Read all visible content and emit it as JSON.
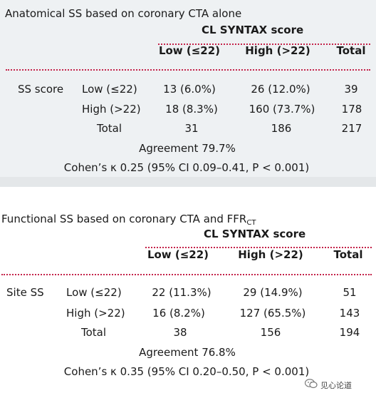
{
  "table1": {
    "title": "Anatomical SS based on coronary CTA alone",
    "group_header": "CL SYNTAX score",
    "col_headers": [
      "Low (≤22)",
      "High (>22)",
      "Total"
    ],
    "row_group_label": "SS score",
    "rows": [
      {
        "label": "Low (≤22)",
        "cells": [
          "13 (6.0%)",
          "26 (12.0%)",
          "39"
        ]
      },
      {
        "label": "High (>22)",
        "cells": [
          "18 (8.3%)",
          "160 (73.7%)",
          "178"
        ]
      },
      {
        "label": "Total",
        "cells": [
          "31",
          "186",
          "217"
        ]
      }
    ],
    "agreement": "Agreement 79.7%",
    "kappa": "Cohen’s κ 0.25 (95% CI 0.09–0.41, P < 0.001)"
  },
  "table2": {
    "title_main": "Functional SS based on coronary CTA and FFR",
    "title_sub": "CT",
    "group_header": "CL SYNTAX score",
    "col_headers": [
      "Low (≤22)",
      "High (>22)",
      "Total"
    ],
    "row_group_label": "Site SS",
    "rows": [
      {
        "label": "Low (≤22)",
        "cells": [
          "22 (11.3%)",
          "29 (14.9%)",
          "51"
        ]
      },
      {
        "label": "High (>22)",
        "cells": [
          "16 (8.2%)",
          "127 (65.5%)",
          "143"
        ]
      },
      {
        "label": "Total",
        "cells": [
          "38",
          "156",
          "194"
        ]
      }
    ],
    "agreement": "Agreement 76.8%",
    "kappa": "Cohen’s κ 0.35 (95% CI 0.20–0.50, P < 0.001)"
  },
  "watermark": "见心论道",
  "colors": {
    "panel_bg": "#eef1f3",
    "rule": "#c4234a"
  }
}
